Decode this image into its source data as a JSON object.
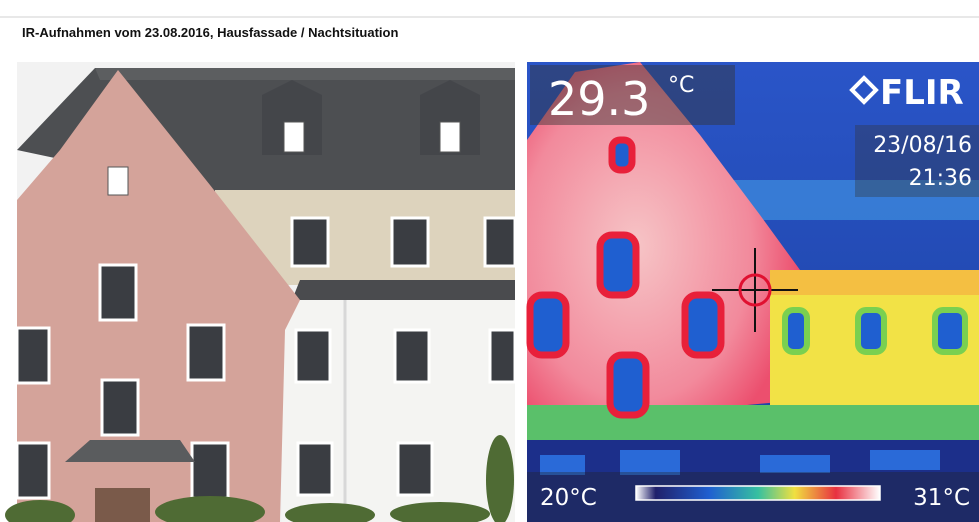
{
  "header": {
    "title": "IR-Aufnahmen vom 23.08.2016, Hausfassade / Nachtsituation"
  },
  "thermal": {
    "temperature": "29.3",
    "temperature_unit": "°C",
    "brand": "FLIR",
    "date": "23/08/16",
    "time": "21:36",
    "scale_min": "20°C",
    "scale_max": "31°C"
  }
}
